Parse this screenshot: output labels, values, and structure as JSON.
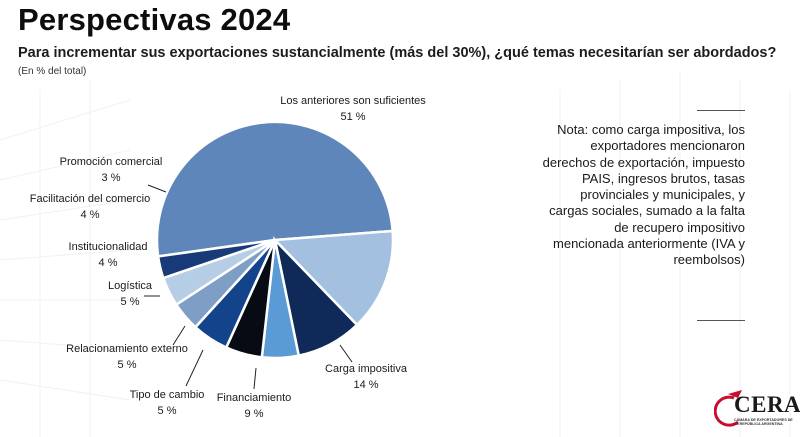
{
  "header": {
    "title": "Perspectivas 2024",
    "subtitle": "Para incrementar sus exportaciones sustancialmente (más del 30%), ¿qué temas necesitarían ser abordados?",
    "unit_note": "(En % del total)"
  },
  "chart_data": {
    "type": "pie",
    "slices": [
      {
        "label": "Los anteriores son suficientes",
        "value": 51,
        "value_label": "51 %",
        "color": "#5f86ba"
      },
      {
        "label": "Carga impositiva",
        "value": 14,
        "value_label": "14 %",
        "color": "#a3c0e0"
      },
      {
        "label": "Financiamiento",
        "value": 9,
        "value_label": "9 %",
        "color": "#0f2a59"
      },
      {
        "label": "Tipo de cambio",
        "value": 5,
        "value_label": "5 %",
        "color": "#5b9bd5"
      },
      {
        "label": "Relacionamiento externo",
        "value": 5,
        "value_label": "5 %",
        "color": "#070b14"
      },
      {
        "label": "Logística",
        "value": 5,
        "value_label": "5 %",
        "color": "#13438a"
      },
      {
        "label": "Institucionalidad",
        "value": 4,
        "value_label": "4 %",
        "color": "#7f9ec6"
      },
      {
        "label": "Facilitación del comercio",
        "value": 4,
        "value_label": "4 %",
        "color": "#b6cde6"
      },
      {
        "label": "Promoción comercial",
        "value": 3,
        "value_label": "3 %",
        "color": "#183a78"
      }
    ]
  },
  "note": {
    "text": "Nota: como carga impositiva, los exportadores mencionaron derechos de exportación, impuesto PAIS, ingresos brutos, tasas provinciales y municipales, y cargas sociales, sumado a la falta de recupero impositivo mencionada anteriormente (IVA y reembolsos)"
  },
  "logo": {
    "name": "CERA",
    "subtext": "CÁMARA DE EXPORTADORES DE LA REPÚBLICA ARGENTINA",
    "accent_color": "#c8102e"
  }
}
